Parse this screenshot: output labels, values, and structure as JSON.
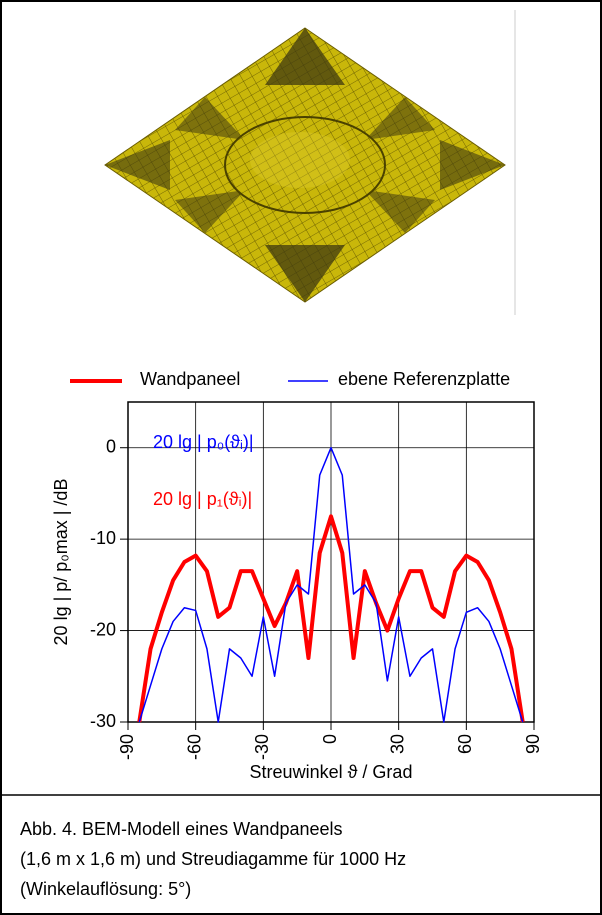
{
  "chart_data": {
    "type": "line",
    "x": [
      -85,
      -80,
      -75,
      -70,
      -65,
      -60,
      -55,
      -50,
      -45,
      -40,
      -35,
      -30,
      -25,
      -20,
      -15,
      -10,
      -5,
      0,
      5,
      10,
      15,
      20,
      25,
      30,
      35,
      40,
      45,
      50,
      55,
      60,
      65,
      70,
      75,
      80,
      85
    ],
    "series": [
      {
        "name": "Wandpaneel",
        "color": "#ff0000",
        "values": [
          -30,
          -22,
          -18,
          -14.5,
          -12.5,
          -11.8,
          -13.5,
          -18.5,
          -17.5,
          -13.5,
          -13.5,
          -16.5,
          -19.5,
          -17,
          -13.5,
          -23,
          -11.5,
          -7.5,
          -11.5,
          -23,
          -13.5,
          -17,
          -20,
          -16.5,
          -13.5,
          -13.5,
          -17.5,
          -18.5,
          -13.5,
          -11.8,
          -12.5,
          -14.5,
          -18,
          -22,
          -30
        ]
      },
      {
        "name": "ebene Referenzplatte",
        "color": "#0000ff",
        "values": [
          -30,
          -26,
          -22,
          -19,
          -17.5,
          -17.8,
          -22,
          -30,
          -22,
          -23,
          -25,
          -18.5,
          -25,
          -17,
          -15,
          -16,
          -3,
          0,
          -3,
          -16,
          -15,
          -17,
          -25.5,
          -18.5,
          -25,
          -23,
          -22,
          -30,
          -22,
          -18,
          -17.5,
          -19,
          -22,
          -26,
          -30
        ]
      }
    ],
    "xlabel": "Streuwinkel ϑ / Grad",
    "ylabel": "20 lg | p/ p₀max | /dB",
    "xlim": [
      -90,
      90
    ],
    "xticks": [
      -90,
      -60,
      -30,
      0,
      30,
      60,
      90
    ],
    "ylim": [
      -30,
      5
    ],
    "yticks": [
      -30,
      -20,
      -10,
      0
    ],
    "grid": true,
    "annotations": [
      {
        "text": "20 lg | p₀(ϑᵢ)|",
        "color": "#0000ff"
      },
      {
        "text": "20 lg | p₁(ϑᵢ)|",
        "color": "#ff0000"
      }
    ]
  },
  "caption": [
    "Abb. 4. BEM-Modell eines Wandpaneels",
    "(1,6 m x 1,6 m) und Streudiagamme für 1000 Hz",
    "(Winkelauflösung: 5°)"
  ]
}
